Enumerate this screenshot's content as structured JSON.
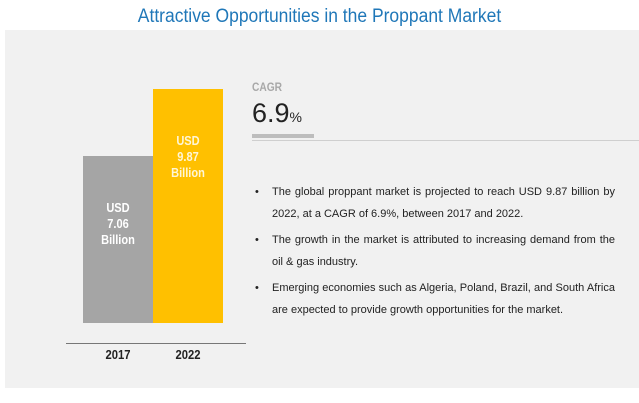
{
  "title": "Attractive Opportunities in the Proppant Market",
  "chart_data": {
    "type": "bar",
    "categories": [
      "2017",
      "2022"
    ],
    "values": [
      7.06,
      9.87
    ],
    "unit": "USD Billion",
    "data_labels": [
      {
        "line1": "USD",
        "line2": "7.06",
        "line3": "Billion"
      },
      {
        "line1": "USD",
        "line2": "9.87",
        "line3": "Billion"
      }
    ],
    "colors": [
      "#a5a5a5",
      "#ffc000"
    ],
    "ylim": [
      0,
      10
    ],
    "grid": false
  },
  "cagr": {
    "label": "CAGR",
    "value": "6.9",
    "unit": "%"
  },
  "bullets": [
    "The global proppant market is projected to reach USD 9.87 billion by 2022, at a CAGR of 6.9%, between 2017 and 2022.",
    "The growth in the market is attributed to increasing demand from the oil & gas industry.",
    "Emerging economies such as Algeria, Poland, Brazil, and South Africa are expected to provide growth opportunities for the market."
  ],
  "bullet_symbol": "•"
}
